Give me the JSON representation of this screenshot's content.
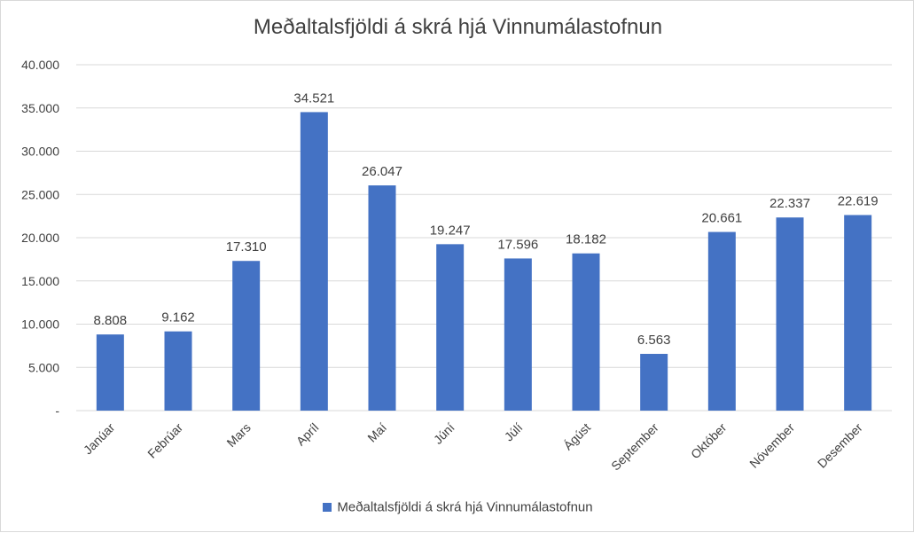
{
  "chart_data": {
    "type": "bar",
    "title": "Meðaltalsfjöldi á skrá hjá Vinnumálastofnun",
    "categories": [
      "Janúar",
      "Febrúar",
      "Mars",
      "Apríl",
      "Maí",
      "Júní",
      "Júlí",
      "Ágúst",
      "September",
      "Október",
      "Nóvember",
      "Desember"
    ],
    "series": [
      {
        "name": "Meðaltalsfjöldi á skrá hjá Vinnumálastofnun",
        "values": [
          8808,
          9162,
          17310,
          34521,
          26047,
          19247,
          17596,
          18182,
          6563,
          20661,
          22337,
          22619
        ],
        "labels": [
          "8.808",
          "9.162",
          "17.310",
          "34.521",
          "26.047",
          "19.247",
          "17.596",
          "18.182",
          "6.563",
          "20.661",
          "22.337",
          "22.619"
        ],
        "color": "#4472c4"
      }
    ],
    "ylim": [
      0,
      40000
    ],
    "yticks": [
      0,
      5000,
      10000,
      15000,
      20000,
      25000,
      30000,
      35000,
      40000
    ],
    "ytick_labels": [
      "-",
      "5.000",
      "10.000",
      "15.000",
      "20.000",
      "25.000",
      "30.000",
      "35.000",
      "40.000"
    ],
    "xlabel": "",
    "ylabel": "",
    "grid": true,
    "legend_position": "bottom"
  }
}
